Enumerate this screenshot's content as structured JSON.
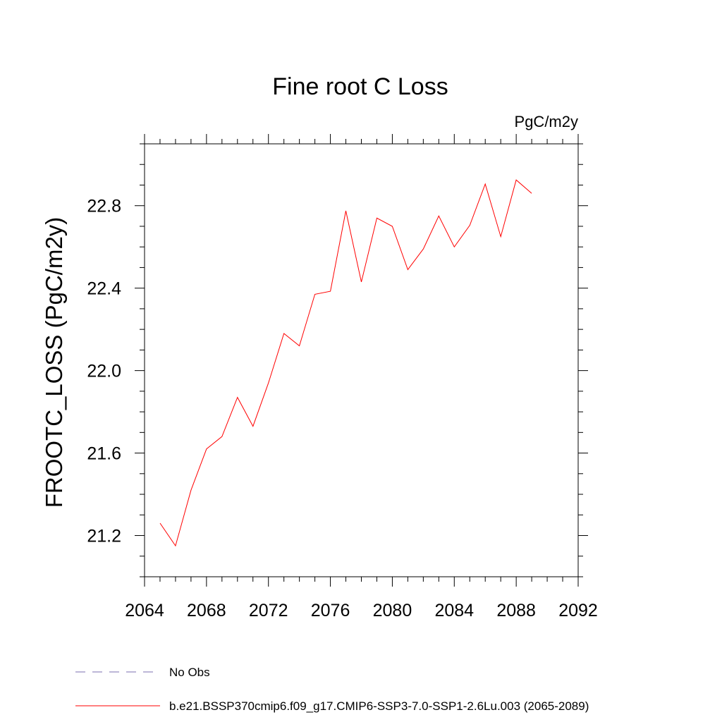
{
  "chart_data": {
    "type": "line",
    "title": "Fine root C Loss",
    "units_label": "PgC/m2y",
    "ylabel": "FROOTC_LOSS  (PgC/m2y)",
    "xlabel": "",
    "xlim": [
      2064,
      2092
    ],
    "ylim": [
      21.0,
      23.1
    ],
    "x_major_ticks": [
      2064,
      2068,
      2072,
      2076,
      2080,
      2084,
      2088,
      2092
    ],
    "x_minor_step": 1,
    "y_major_ticks": [
      21.2,
      21.6,
      22.0,
      22.4,
      22.8
    ],
    "y_minor_step": 0.1,
    "grid": false,
    "legend_position": "bottom",
    "series": [
      {
        "name": "No Obs",
        "color": "#7b6fb0",
        "dash": "dashed",
        "x": [],
        "y": []
      },
      {
        "name": "b.e21.BSSP370cmip6.f09_g17.CMIP6-SSP3-7.0-SSP1-2.6Lu.003 (2065-2089)",
        "color": "#ff0000",
        "dash": "solid",
        "x": [
          2065,
          2066,
          2067,
          2068,
          2069,
          2070,
          2071,
          2072,
          2073,
          2074,
          2075,
          2076,
          2077,
          2078,
          2079,
          2080,
          2081,
          2082,
          2083,
          2084,
          2085,
          2086,
          2087,
          2088,
          2089
        ],
        "y": [
          21.26,
          21.15,
          21.42,
          21.62,
          21.68,
          21.87,
          21.73,
          21.94,
          22.18,
          22.12,
          22.37,
          22.385,
          22.775,
          22.43,
          22.74,
          22.7,
          22.49,
          22.59,
          22.75,
          22.6,
          22.705,
          22.905,
          22.65,
          22.925,
          22.86
        ]
      }
    ]
  }
}
